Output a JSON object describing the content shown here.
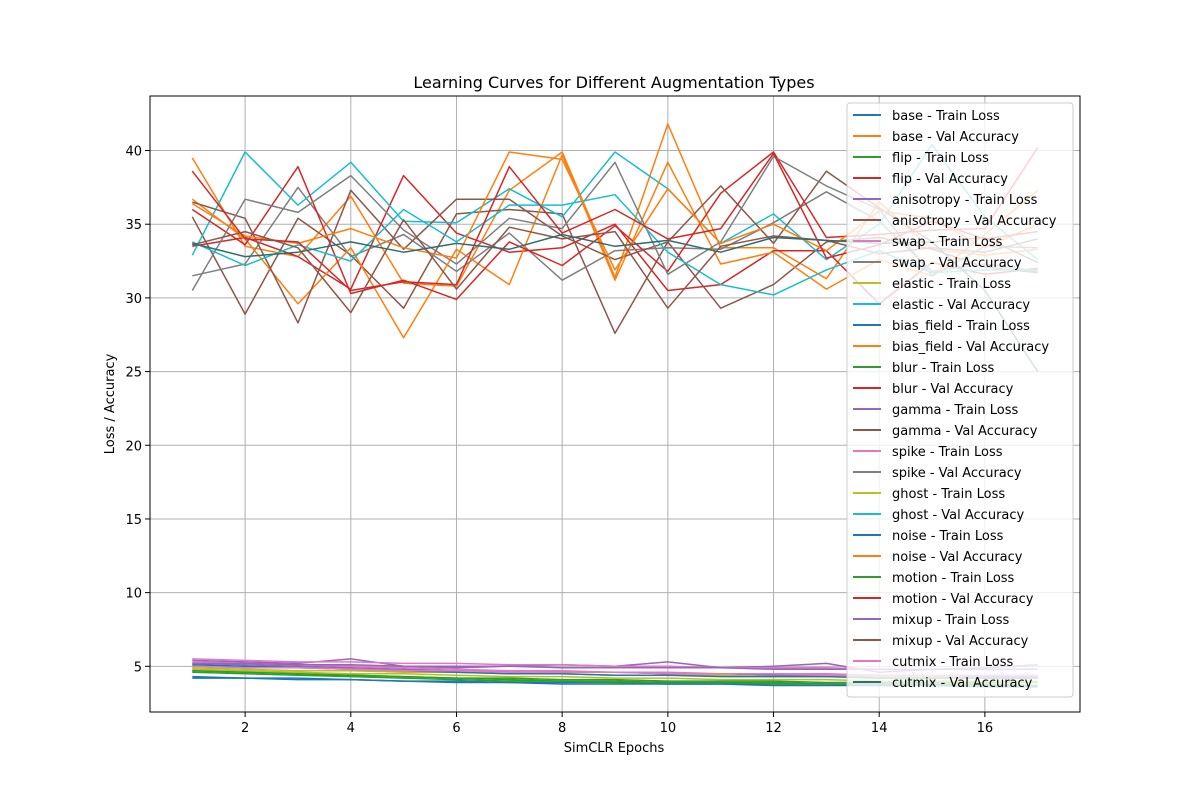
{
  "chart_data": {
    "type": "line",
    "title": "Learning Curves for Different Augmentation Types",
    "xlabel": "SimCLR Epochs",
    "ylabel": "Loss / Accuracy",
    "xlim": [
      0.2,
      17.8
    ],
    "ylim": [
      1.9,
      43.7
    ],
    "xticks": [
      2,
      4,
      6,
      8,
      10,
      12,
      14,
      16
    ],
    "yticks": [
      5,
      10,
      15,
      20,
      25,
      30,
      35,
      40
    ],
    "grid": true,
    "legend_position": "top-right",
    "x": [
      1,
      2,
      3,
      4,
      5,
      6,
      7,
      8,
      9,
      10,
      11,
      12,
      13,
      14,
      15,
      16,
      17
    ],
    "series": [
      {
        "name": "base - Train Loss",
        "color": "#1f77b4",
        "values": [
          4.3,
          4.2,
          4.2,
          4.1,
          4.0,
          3.9,
          3.9,
          3.8,
          3.8,
          3.8,
          3.8,
          3.7,
          3.7,
          3.7,
          3.7,
          3.6,
          3.6
        ]
      },
      {
        "name": "base - Val Accuracy",
        "color": "#ff7f0e",
        "values": [
          39.5,
          33.5,
          32.8,
          36.9,
          31.0,
          30.8,
          37.3,
          39.9,
          31.4,
          41.8,
          33.4,
          33.4,
          31.3,
          36.5,
          33.3,
          32.9,
          33.3
        ]
      },
      {
        "name": "flip - Train Loss",
        "color": "#2ca02c",
        "values": [
          4.7,
          4.6,
          4.5,
          4.4,
          4.3,
          4.2,
          4.1,
          4.0,
          4.0,
          3.9,
          3.9,
          3.9,
          3.8,
          3.8,
          3.8,
          3.8,
          3.7
        ]
      },
      {
        "name": "flip - Val Accuracy",
        "color": "#d62728",
        "values": [
          33.5,
          34.1,
          32.8,
          30.6,
          38.3,
          34.4,
          33.1,
          33.4,
          35.0,
          30.5,
          30.9,
          33.2,
          33.2,
          29.6,
          32.4,
          31.6,
          32.0
        ]
      },
      {
        "name": "anisotropy - Train Loss",
        "color": "#9467bd",
        "values": [
          5.2,
          5.1,
          5.0,
          4.9,
          4.8,
          4.7,
          4.7,
          4.6,
          4.6,
          4.5,
          4.5,
          4.4,
          4.4,
          4.4,
          4.3,
          4.3,
          4.3
        ]
      },
      {
        "name": "anisotropy - Val Accuracy",
        "color": "#8c564b",
        "values": [
          35.5,
          28.9,
          35.4,
          32.9,
          29.3,
          35.7,
          36.0,
          35.7,
          27.6,
          33.8,
          29.3,
          30.9,
          33.8,
          34.1,
          33.3,
          32.1,
          31.7
        ]
      },
      {
        "name": "swap - Train Loss",
        "color": "#e377c2",
        "values": [
          5.3,
          5.2,
          5.1,
          5.0,
          4.9,
          4.8,
          4.7,
          4.7,
          4.6,
          4.6,
          4.5,
          4.5,
          4.5,
          4.4,
          4.4,
          4.4,
          4.4
        ]
      },
      {
        "name": "swap - Val Accuracy",
        "color": "#7f7f7f",
        "values": [
          31.5,
          32.3,
          37.5,
          32.8,
          34.3,
          31.8,
          34.4,
          31.2,
          33.2,
          33.4,
          33.3,
          35.1,
          37.2,
          35.2,
          31.8,
          32.3,
          31.8
        ]
      },
      {
        "name": "elastic - Train Loss",
        "color": "#bcbd22",
        "values": [
          4.8,
          4.7,
          4.6,
          4.5,
          4.5,
          4.4,
          4.3,
          4.3,
          4.2,
          4.2,
          4.1,
          4.1,
          4.1,
          4.0,
          4.0,
          4.0,
          4.0
        ]
      },
      {
        "name": "elastic - Val Accuracy",
        "color": "#17becf",
        "values": [
          32.9,
          39.9,
          36.3,
          39.2,
          35.2,
          35.1,
          37.4,
          35.5,
          39.9,
          37.4,
          33.7,
          35.7,
          32.6,
          35.0,
          40.4,
          35.5,
          32.6
        ]
      },
      {
        "name": "bias_field - Train Loss",
        "color": "#1f77b4",
        "values": [
          4.2,
          4.2,
          4.1,
          4.1,
          4.0,
          4.0,
          3.9,
          3.9,
          3.9,
          3.8,
          3.8,
          3.8,
          3.8,
          3.7,
          3.7,
          3.7,
          3.7
        ]
      },
      {
        "name": "bias_field - Val Accuracy",
        "color": "#ff7f0e",
        "values": [
          36.7,
          34.0,
          29.6,
          33.4,
          27.3,
          33.3,
          30.9,
          39.7,
          31.2,
          39.2,
          32.3,
          33.1,
          30.6,
          32.6,
          31.5,
          34.3,
          37.3
        ]
      },
      {
        "name": "blur - Train Loss",
        "color": "#2ca02c",
        "values": [
          4.6,
          4.5,
          4.4,
          4.3,
          4.2,
          4.1,
          4.0,
          4.0,
          3.9,
          3.9,
          3.9,
          3.8,
          3.8,
          3.8,
          3.8,
          3.7,
          3.7
        ]
      },
      {
        "name": "blur - Val Accuracy",
        "color": "#d62728",
        "values": [
          36.0,
          33.6,
          38.9,
          30.3,
          31.2,
          29.9,
          33.8,
          32.2,
          34.9,
          31.8,
          37.1,
          39.9,
          34.1,
          34.3,
          34.6,
          34.7,
          40.2
        ]
      },
      {
        "name": "gamma - Train Loss",
        "color": "#9467bd",
        "values": [
          5.4,
          5.3,
          5.2,
          5.5,
          5.0,
          4.9,
          5.0,
          5.1,
          5.0,
          5.3,
          4.9,
          5.0,
          5.2,
          4.6,
          4.8,
          4.9,
          5.1
        ]
      },
      {
        "name": "gamma - Val Accuracy",
        "color": "#8c564b",
        "values": [
          36.5,
          35.4,
          28.3,
          37.3,
          33.3,
          36.7,
          36.7,
          34.2,
          32.6,
          33.8,
          37.6,
          33.7,
          38.6,
          36.1,
          33.8,
          34.1,
          32.4
        ]
      },
      {
        "name": "spike - Train Loss",
        "color": "#e377c2",
        "values": [
          5.5,
          5.4,
          5.3,
          5.3,
          5.2,
          5.2,
          5.1,
          5.1,
          5.0,
          5.0,
          4.9,
          4.9,
          4.9,
          4.8,
          4.8,
          4.8,
          4.8
        ]
      },
      {
        "name": "spike - Val Accuracy",
        "color": "#7f7f7f",
        "values": [
          30.5,
          36.7,
          35.8,
          38.3,
          34.6,
          32.3,
          35.4,
          34.7,
          39.2,
          31.6,
          33.8,
          39.6,
          37.6,
          36.0,
          31.5,
          33.5,
          33.4
        ]
      },
      {
        "name": "ghost - Train Loss",
        "color": "#bcbd22",
        "values": [
          4.9,
          4.8,
          4.7,
          4.7,
          4.6,
          4.6,
          4.5,
          4.5,
          4.4,
          4.4,
          4.4,
          4.3,
          4.3,
          4.3,
          4.3,
          4.2,
          4.2
        ]
      },
      {
        "name": "ghost - Val Accuracy",
        "color": "#17becf",
        "values": [
          33.8,
          32.2,
          33.6,
          32.5,
          36.0,
          33.8,
          36.3,
          36.3,
          37.0,
          33.1,
          30.9,
          30.2,
          31.9,
          33.2,
          31.7,
          31.9,
          31.9
        ]
      },
      {
        "name": "noise - Train Loss",
        "color": "#1f77b4",
        "values": [
          5.1,
          5.0,
          4.9,
          4.8,
          4.7,
          4.6,
          4.5,
          4.5,
          4.4,
          4.4,
          4.3,
          4.3,
          4.3,
          4.2,
          4.2,
          4.2,
          4.2
        ]
      },
      {
        "name": "noise - Val Accuracy",
        "color": "#ff7f0e",
        "values": [
          36.4,
          34.2,
          33.7,
          34.7,
          33.4,
          32.7,
          39.9,
          39.4,
          31.9,
          37.4,
          33.7,
          35.0,
          33.2,
          35.9,
          35.4,
          33.4,
          35.0
        ]
      },
      {
        "name": "motion - Train Loss",
        "color": "#2ca02c",
        "values": [
          4.7,
          4.6,
          4.5,
          4.4,
          4.3,
          4.2,
          4.2,
          4.1,
          4.1,
          4.0,
          4.0,
          4.0,
          3.9,
          3.9,
          3.9,
          3.9,
          3.9
        ]
      },
      {
        "name": "motion - Val Accuracy",
        "color": "#d62728",
        "values": [
          38.6,
          34.0,
          33.8,
          30.5,
          31.1,
          30.9,
          38.9,
          34.4,
          36.0,
          34.0,
          34.7,
          39.8,
          32.7,
          33.6,
          35.2,
          34.0,
          34.5
        ]
      },
      {
        "name": "mixup - Train Loss",
        "color": "#9467bd",
        "values": [
          5.2,
          5.2,
          5.1,
          5.1,
          5.0,
          5.0,
          5.0,
          4.9,
          4.9,
          4.9,
          4.9,
          4.8,
          4.8,
          4.8,
          4.8,
          4.8,
          4.8
        ]
      },
      {
        "name": "mixup - Val Accuracy",
        "color": "#8c564b",
        "values": [
          33.6,
          34.5,
          33.4,
          29.0,
          35.3,
          30.6,
          34.8,
          34.0,
          34.5,
          29.3,
          33.5,
          34.2,
          33.9,
          33.0,
          33.4,
          33.1,
          34.0
        ]
      },
      {
        "name": "cutmix - Train Loss",
        "color": "#e377c2",
        "values": [
          5.0,
          4.9,
          4.9,
          4.8,
          4.7,
          4.7,
          4.6,
          4.6,
          4.6,
          4.5,
          4.5,
          4.5,
          4.4,
          4.4,
          4.4,
          4.4,
          4.4
        ]
      },
      {
        "name": "cutmix - Val Accuracy",
        "color": "#2f6e6e",
        "values": [
          33.7,
          32.8,
          33.1,
          33.8,
          33.1,
          33.7,
          33.3,
          34.3,
          33.5,
          33.9,
          33.1,
          34.1,
          33.9,
          33.7,
          33.8,
          30.5,
          25.0
        ]
      }
    ]
  }
}
